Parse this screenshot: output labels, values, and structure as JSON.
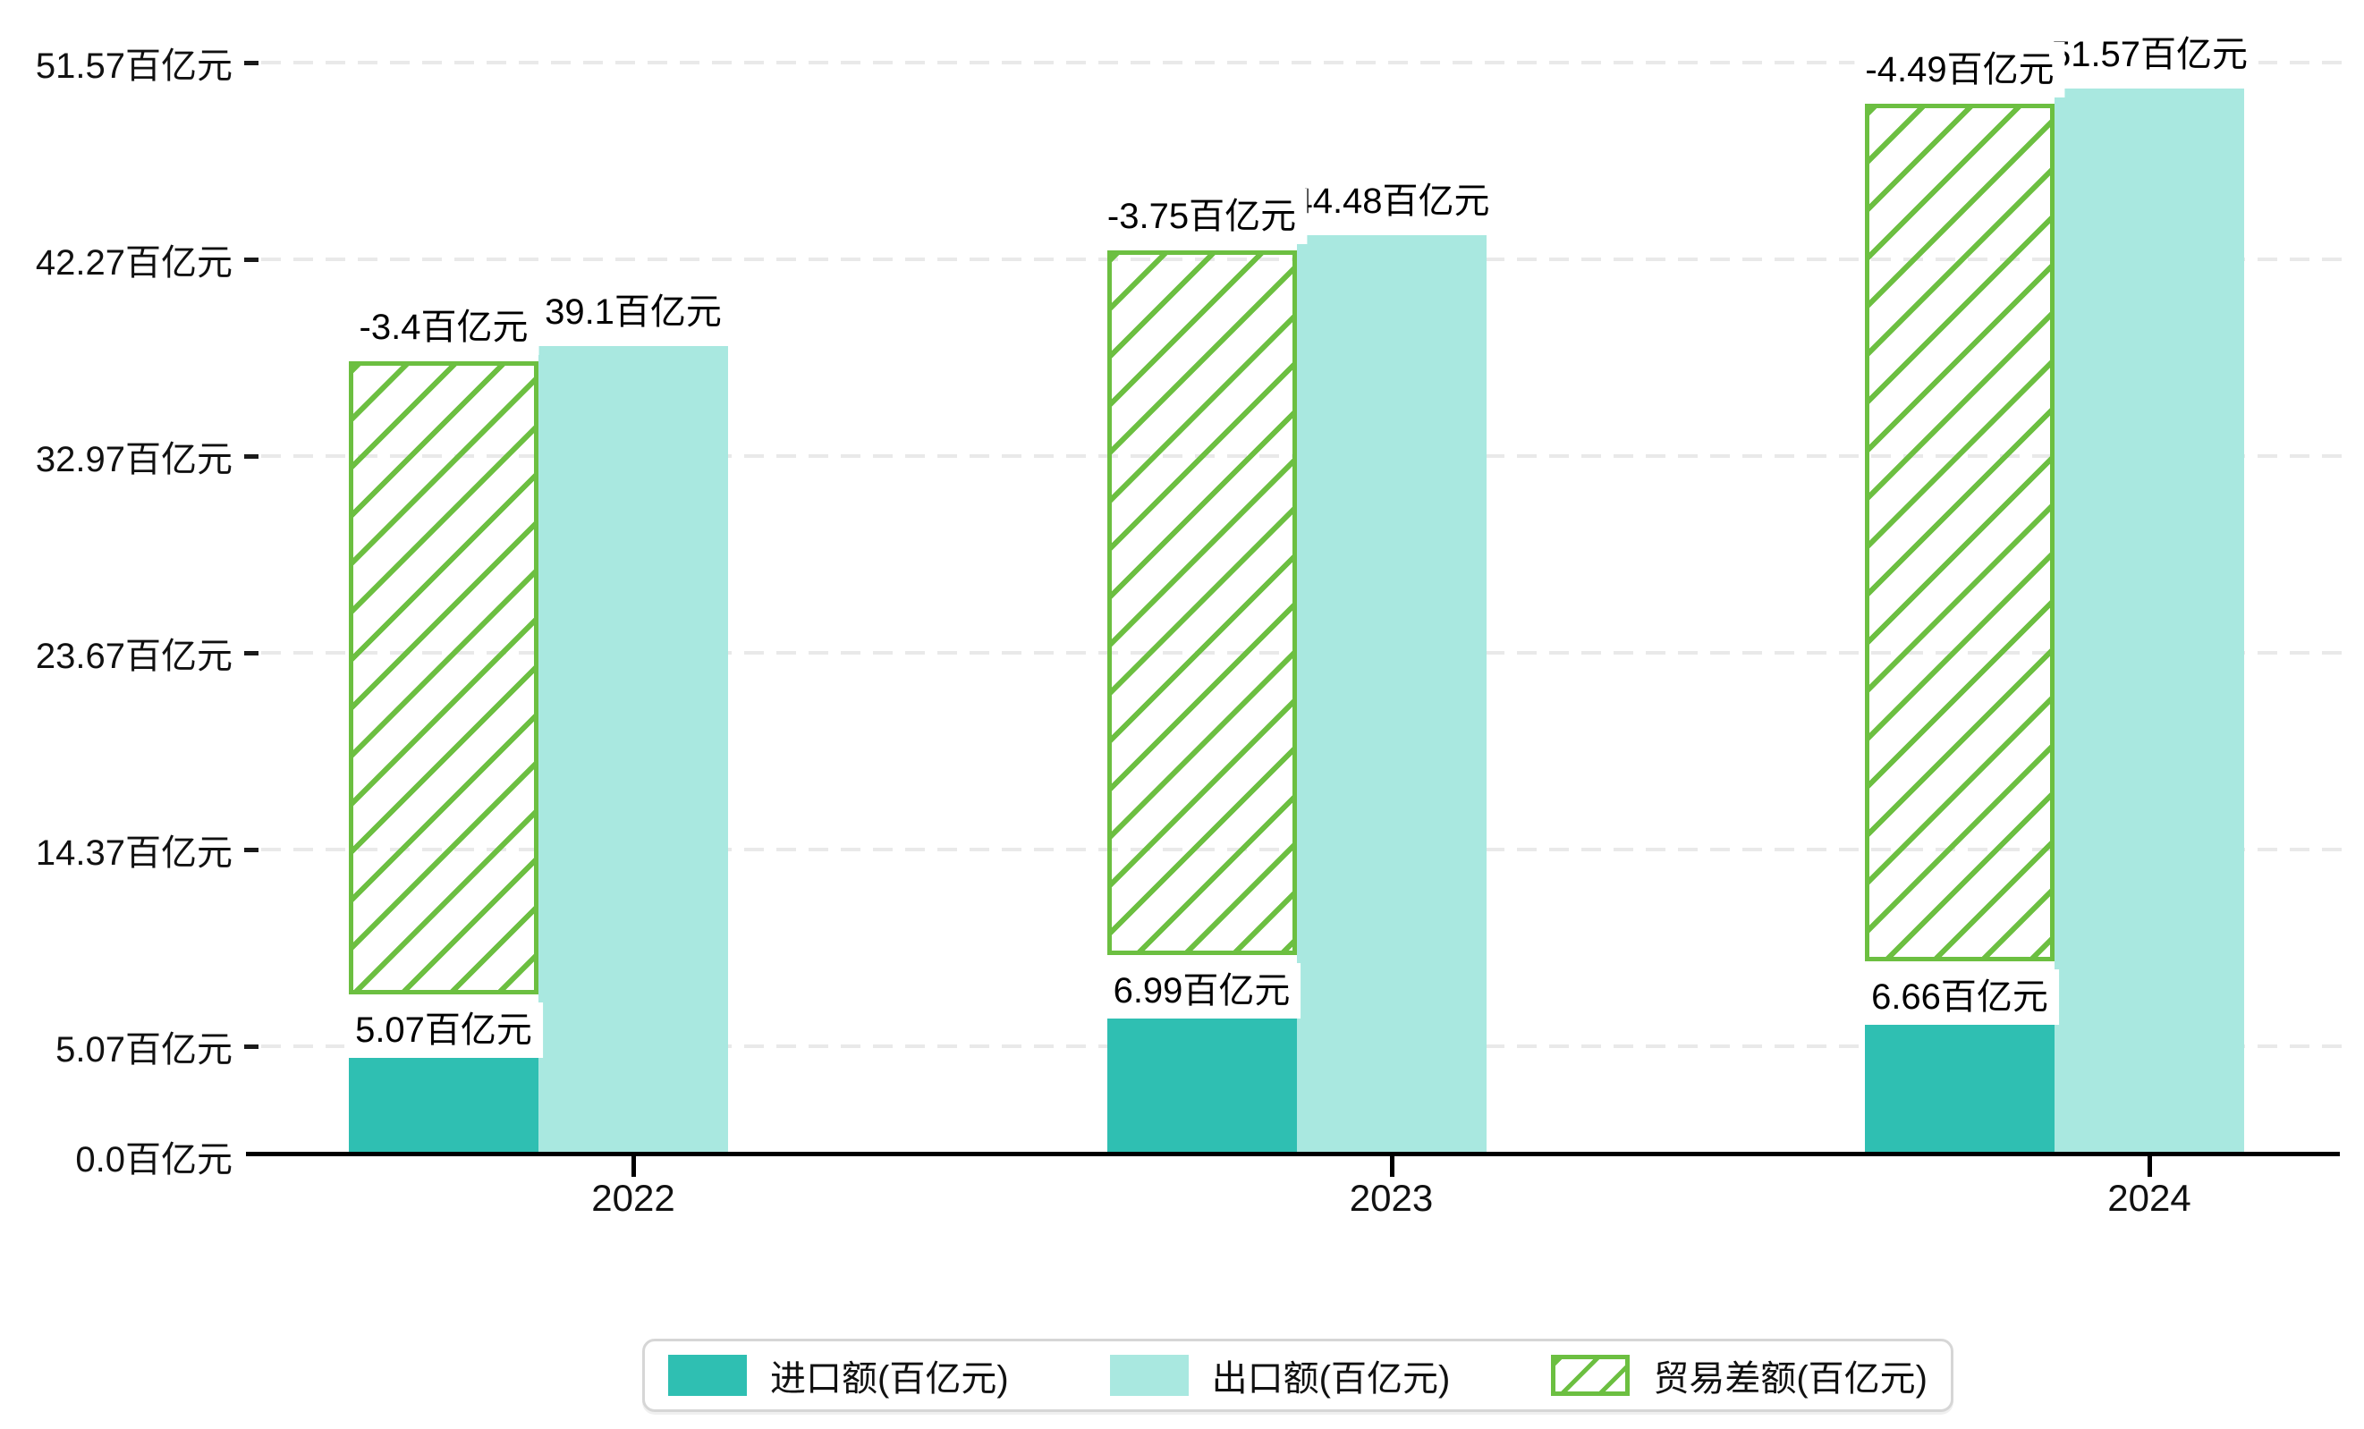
{
  "chart_data": {
    "type": "bar",
    "title": "",
    "xlabel": "",
    "ylabel": "",
    "unit": "百亿元",
    "categories": [
      "2022",
      "2023",
      "2024"
    ],
    "series": [
      {
        "name": "进口额(百亿元)",
        "values": [
          5.07,
          6.99,
          6.66
        ],
        "data_labels": [
          "5.07百亿元",
          "6.99百亿元",
          "6.66百亿元"
        ],
        "color": "#2fbfb2",
        "style": "solid"
      },
      {
        "name": "出口额(百亿元)",
        "values": [
          39.1,
          44.48,
          51.57
        ],
        "data_labels": [
          "39.1百亿元",
          "44.48百亿元",
          "51.57百亿元"
        ],
        "color": "#a9e8e0",
        "style": "solid"
      },
      {
        "name": "贸易差额(百亿元)",
        "values": [
          -3.4,
          -3.75,
          -4.49
        ],
        "data_labels": [
          "-3.4百亿元",
          "-3.75百亿元",
          "-4.49百亿元"
        ],
        "color": "#6cbf41",
        "style": "hatched-outline",
        "drawn_as": "hatched bar stacked above import bar reaching export bar top"
      }
    ],
    "yticks": [
      {
        "value": 51.57,
        "label": "51.57百亿元"
      },
      {
        "value": 42.27,
        "label": "42.27百亿元"
      },
      {
        "value": 32.97,
        "label": "32.97百亿元"
      },
      {
        "value": 23.67,
        "label": "23.67百亿元"
      },
      {
        "value": 14.37,
        "label": "14.37百亿元"
      },
      {
        "value": 5.07,
        "label": "5.07百亿元"
      },
      {
        "value": 0.0,
        "label": "0.0百亿元"
      }
    ],
    "ylim": [
      0,
      54.5
    ],
    "grid": "dashed-horizontal",
    "legend_position": "bottom-center"
  },
  "legend": {
    "items": [
      {
        "label": "进口额(百亿元)",
        "swatch": "import"
      },
      {
        "label": "出口额(百亿元)",
        "swatch": "export"
      },
      {
        "label": "贸易差额(百亿元)",
        "swatch": "balance"
      }
    ]
  },
  "colors": {
    "import": "#2fbfb2",
    "export": "#a9e8e0",
    "balance": "#6cbf41",
    "grid": "#e9e9e9",
    "axis": "#000000",
    "text": "#111111",
    "label_bg": "#ffffff",
    "legend_border": "#d6d6d6"
  }
}
